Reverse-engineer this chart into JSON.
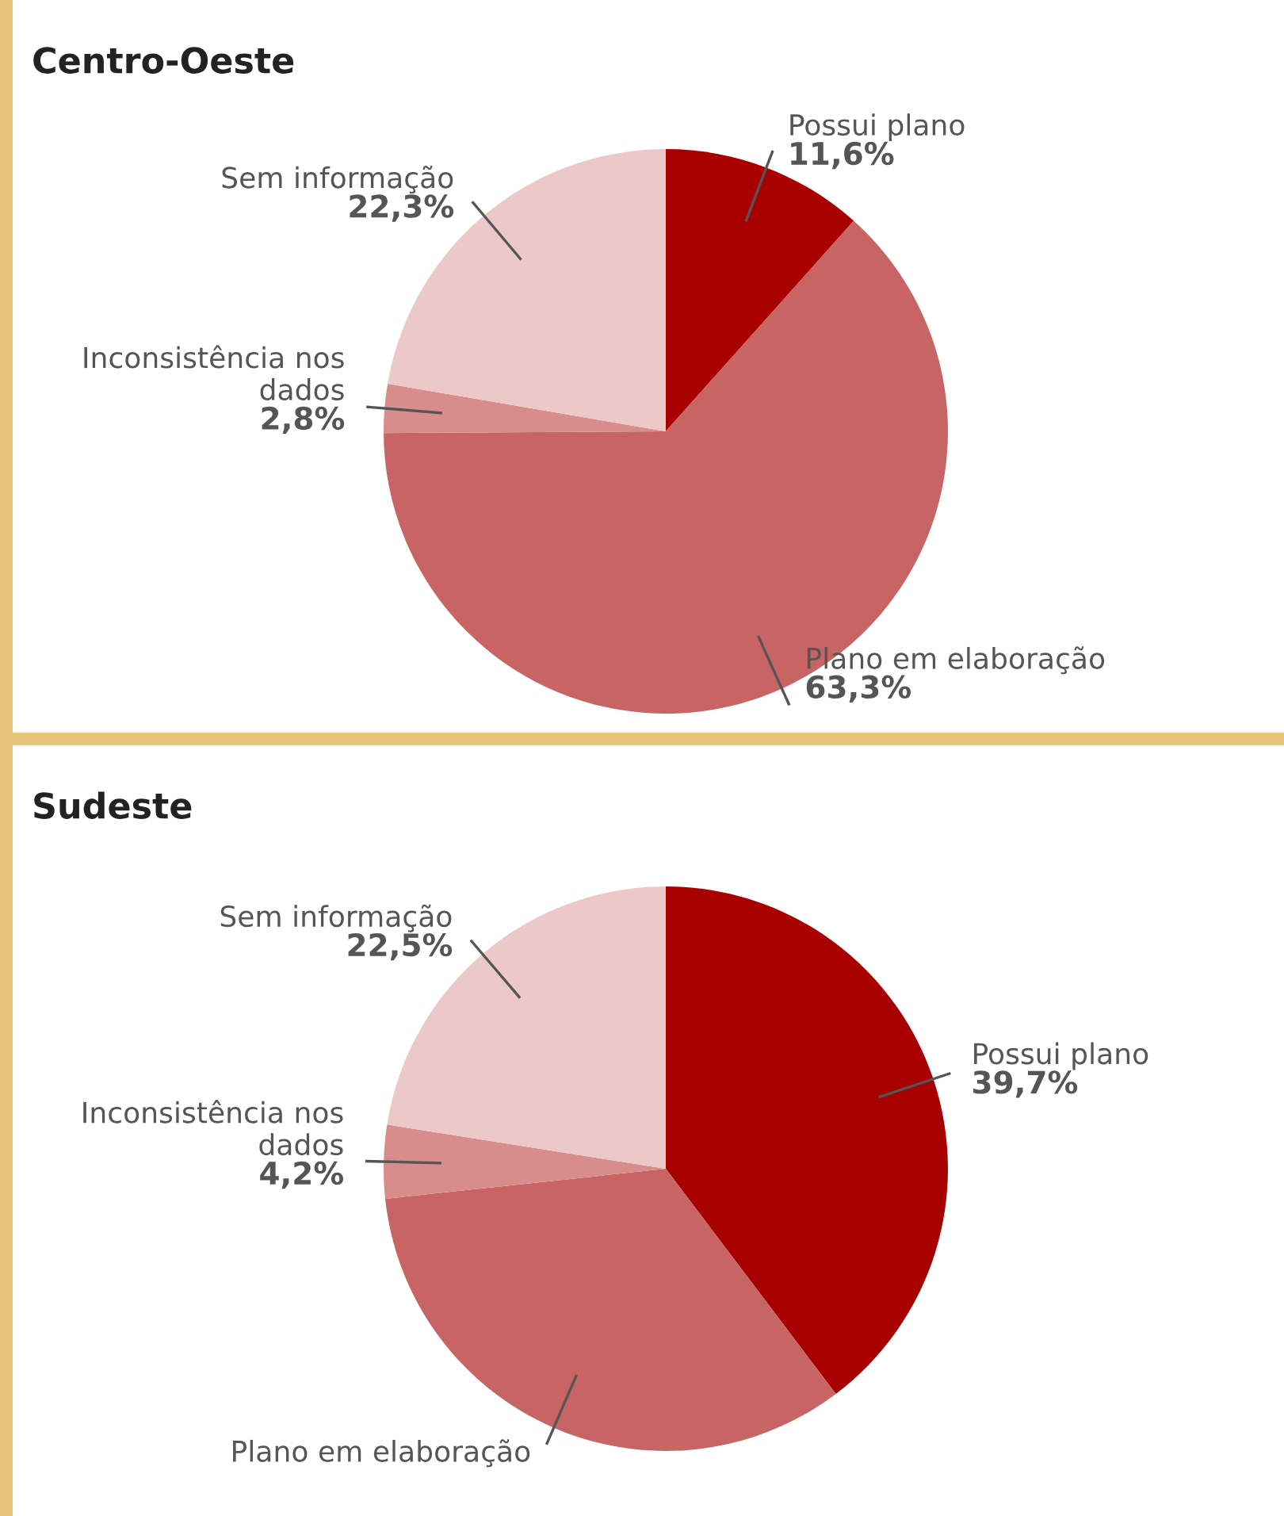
{
  "chart_data": [
    {
      "type": "pie",
      "title": "Centro-Oeste",
      "categories": [
        "Possui plano",
        "Plano em elaboração",
        "Inconsistência nos dados",
        "Sem informação"
      ],
      "values": [
        11.6,
        63.3,
        2.8,
        22.3
      ],
      "colors": [
        "#a80000",
        "#c86464",
        "#d88c8c",
        "#ecc8c8"
      ],
      "value_labels": [
        "11,6%",
        "63,3%",
        "2,8%",
        "22,3%"
      ]
    },
    {
      "type": "pie",
      "title": "Sudeste",
      "categories": [
        "Possui plano",
        "Plano em elaboração",
        "Inconsistência nos dados",
        "Sem informação"
      ],
      "values": [
        39.7,
        33.6,
        4.2,
        22.5
      ],
      "colors": [
        "#a80000",
        "#c86464",
        "#d88c8c",
        "#ecc8c8"
      ],
      "value_labels": [
        "39,7%",
        null,
        "4,2%",
        "22,5%"
      ]
    }
  ]
}
